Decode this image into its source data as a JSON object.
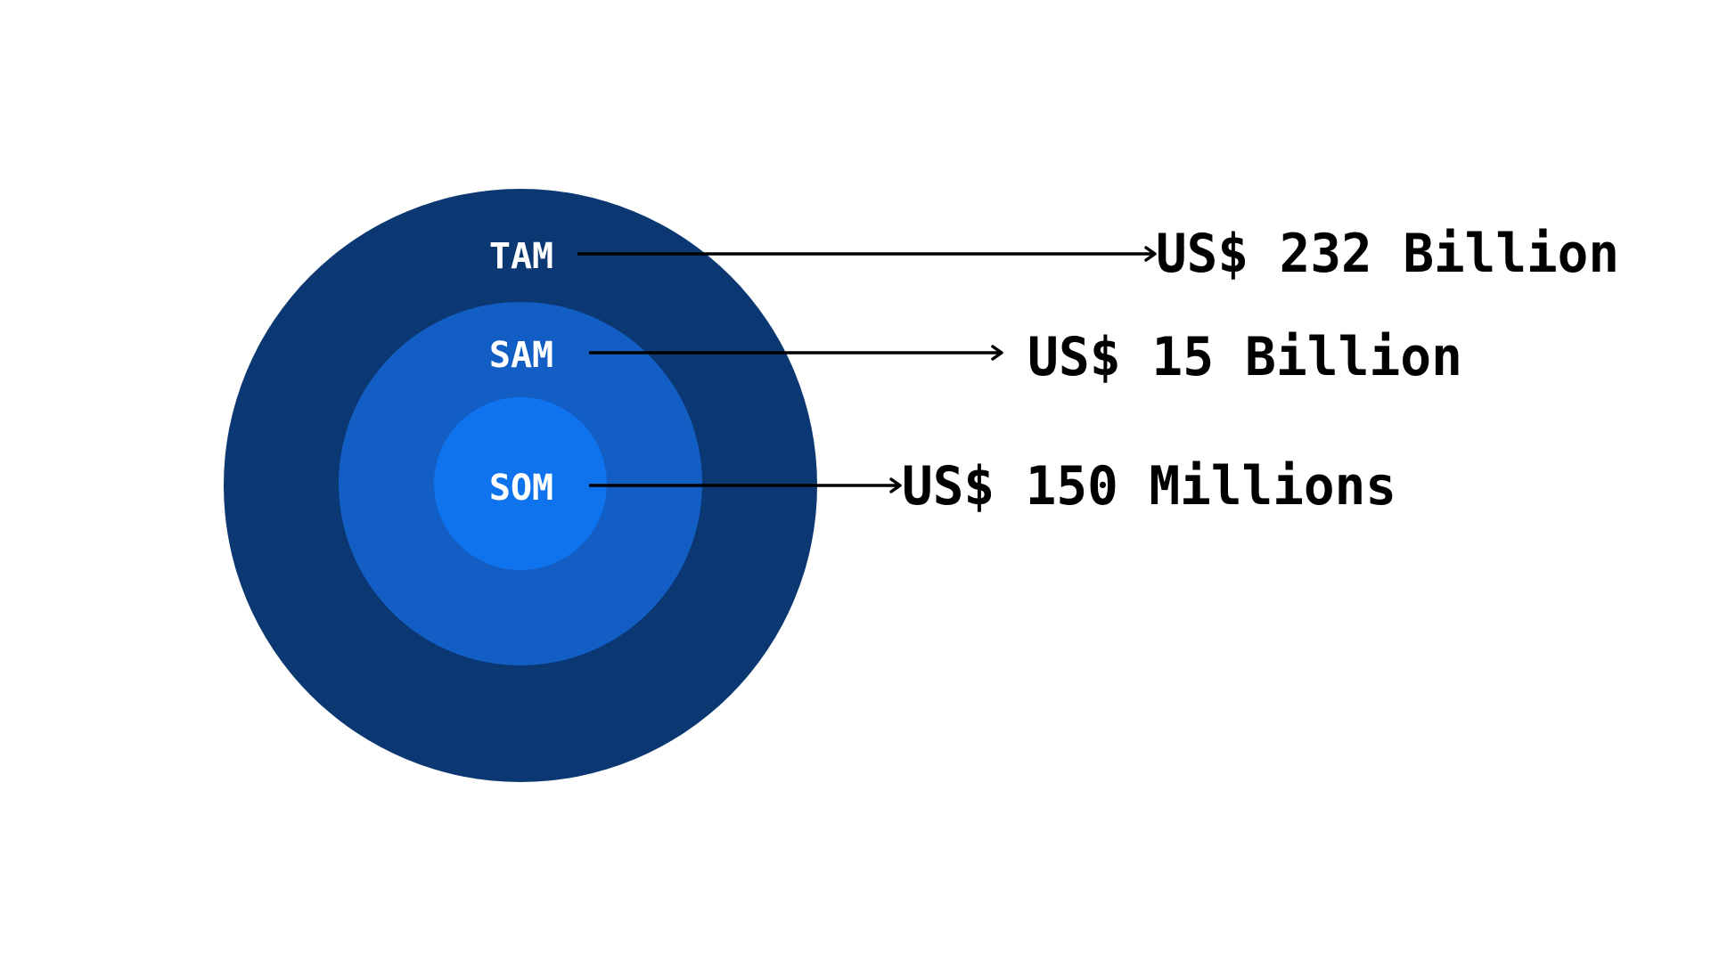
{
  "diagram": {
    "colors": {
      "tam": "#0b3772",
      "sam": "#125ec4",
      "som": "#0f73ed",
      "ring_text": "#ffffff",
      "value_text": "#000000",
      "background": "#ffffff"
    },
    "tam": {
      "label": "TAM",
      "value": "US$ 232 Billion"
    },
    "sam": {
      "label": "SAM",
      "value": "US$ 15 Billion"
    },
    "som": {
      "label": "SOM",
      "value": "US$ 150 Millions"
    }
  }
}
